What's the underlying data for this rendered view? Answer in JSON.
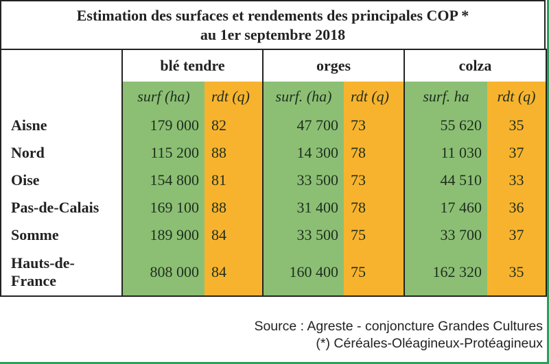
{
  "title": {
    "line1": "Estimation des surfaces et rendements des principales COP *",
    "line2": "au 1er septembre 2018"
  },
  "groups": [
    {
      "name": "blé tendre",
      "surf_label": "surf (ha)",
      "rdt_label": "rdt (q)"
    },
    {
      "name": "orges",
      "surf_label": "surf. (ha)",
      "rdt_label": "rdt (q)"
    },
    {
      "name": "colza",
      "surf_label": "surf. ha",
      "rdt_label": "rdt (q)"
    }
  ],
  "rows": [
    {
      "region": "Aisne",
      "values": [
        "179 000",
        "82",
        "47 700",
        "73",
        "55 620",
        "35"
      ]
    },
    {
      "region": "Nord",
      "values": [
        "115 200",
        "88",
        "14 300",
        "78",
        "11 030",
        "37"
      ]
    },
    {
      "region": "Oise",
      "values": [
        "154 800",
        "81",
        "33 500",
        "73",
        "44 510",
        "33"
      ]
    },
    {
      "region": "Pas-de-Calais",
      "values": [
        "169 100",
        "88",
        "31 400",
        "78",
        "17 460",
        "36"
      ]
    },
    {
      "region": "Somme",
      "values": [
        "189 900",
        "84",
        "33 500",
        "75",
        "33 700",
        "37"
      ]
    },
    {
      "region": "Hauts-de-France",
      "values": [
        "808 000",
        "84",
        "160 400",
        "75",
        "162 320",
        "35"
      ]
    }
  ],
  "footer": {
    "source": "Source : Agreste - conjoncture Grandes Cultures",
    "note": "(*) Céréales-Oléagineux-Protéagineux"
  },
  "colors": {
    "green": "#8cbf74",
    "orange": "#f8b32e",
    "frame": "#2aa05a"
  }
}
